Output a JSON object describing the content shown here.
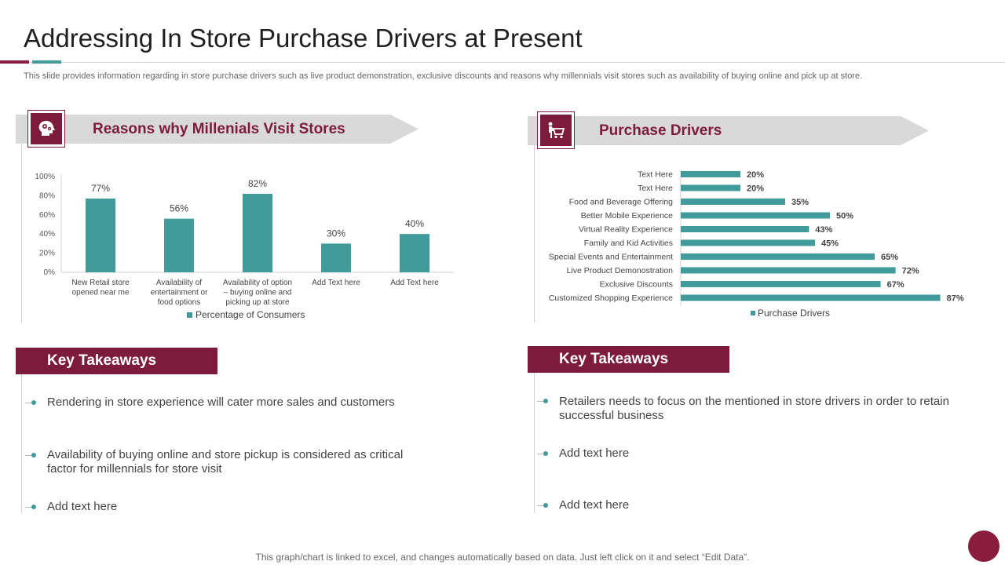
{
  "header": {
    "title": "Addressing In Store Purchase Drivers at Present",
    "subtitle": "This slide provides information regarding in store purchase drivers such as live product demonstration, exclusive discounts and reasons why millennials visit stores such as availability of buying online and pick up at store."
  },
  "left_panel": {
    "heading": "Reasons why Millenials Visit Stores",
    "icon": "gear-head-icon",
    "key_takeaways_label": "Key Takeaways",
    "bullets": [
      "Rendering in store experience will cater more sales and customers",
      "Availability  of buying online and store pickup is considered as critical factor for millennials for store visit",
      "Add text here"
    ]
  },
  "right_panel": {
    "heading": "Purchase Drivers",
    "icon": "shopping-cart-person-icon",
    "key_takeaways_label": "Key Takeaways",
    "bullets": [
      "Retailers needs to focus on the mentioned in store drivers in order to retain successful business",
      "Add text here",
      "Add text here"
    ]
  },
  "footer": {
    "note": "This graph/chart is linked to excel,  and changes automatically based on data. Just left click on it and select “Edit Data”."
  },
  "colors": {
    "accent": "#7d1b3c",
    "bar": "#429b9b",
    "banner": "#d9d9d9"
  },
  "chart_data": [
    {
      "type": "bar",
      "title": "",
      "categories": [
        [
          "New Retail store",
          "opened near me"
        ],
        [
          "Availability of",
          "entertainment or",
          "food  options"
        ],
        [
          "Availability of option",
          "– buying online and",
          "picking up at store"
        ],
        [
          "Add Text here"
        ],
        [
          "Add Text here"
        ]
      ],
      "series": [
        {
          "name": "Percentage of Consumers",
          "values": [
            77,
            56,
            82,
            30,
            40
          ]
        }
      ],
      "value_labels": [
        "77%",
        "56%",
        "82%",
        "30%",
        "40%"
      ],
      "y_ticks": [
        "0%",
        "20%",
        "40%",
        "60%",
        "80%",
        "100%"
      ],
      "ylim": [
        0,
        100
      ],
      "legend": "bottom",
      "grid": false
    },
    {
      "type": "bar",
      "orientation": "horizontal",
      "title": "",
      "categories": [
        "Text Here",
        "Text Here",
        "Food and Beverage Offering",
        "Better Mobile Experience",
        "Virtual Reality Experience",
        "Family and Kid Activities",
        "Special Events and Entertainment",
        "Live Product Demonostration",
        "Exclusive Discounts",
        "Customized Shopping Experience"
      ],
      "series": [
        {
          "name": "Purchase Drivers",
          "values": [
            20,
            20,
            35,
            50,
            43,
            45,
            65,
            72,
            67,
            87
          ]
        }
      ],
      "value_labels": [
        "20%",
        "20%",
        "35%",
        "50%",
        "43%",
        "45%",
        "65%",
        "72%",
        "67%",
        "87%"
      ],
      "xlim": [
        0,
        100
      ],
      "legend": "bottom",
      "grid": false
    }
  ]
}
